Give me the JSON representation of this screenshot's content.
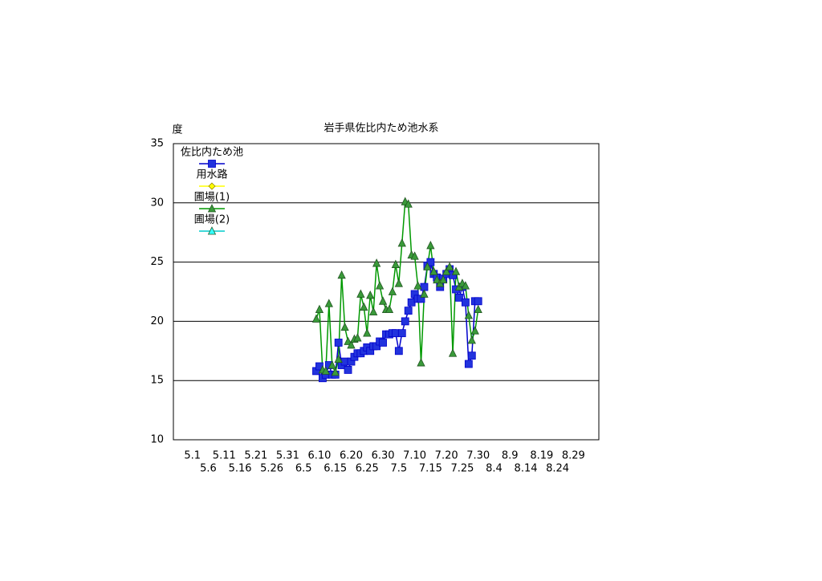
{
  "chart_data": {
    "type": "line",
    "title": "岩手県佐比内ため池水系",
    "ylabel": "度",
    "x": [
      "6.9",
      "6.10",
      "6.11",
      "6.12",
      "6.13",
      "6.14",
      "6.15",
      "6.16",
      "6.17",
      "6.18",
      "6.19",
      "6.20",
      "6.21",
      "6.22",
      "6.23",
      "6.24",
      "6.25",
      "6.26",
      "6.27",
      "6.28",
      "6.29",
      "6.30",
      "7.1",
      "7.2",
      "7.3",
      "7.4",
      "7.5",
      "7.6",
      "7.7",
      "7.8",
      "7.9",
      "7.10",
      "7.11",
      "7.12",
      "7.13",
      "7.14",
      "7.15",
      "7.16",
      "7.17",
      "7.18",
      "7.19",
      "7.20",
      "7.21",
      "7.22",
      "7.23",
      "7.24",
      "7.25",
      "7.26",
      "7.27",
      "7.28",
      "7.29",
      "7.30"
    ],
    "xlim": [
      "4.25",
      "9.6"
    ],
    "xticks": [
      "5.1",
      "5.6",
      "5.11",
      "5.16",
      "5.21",
      "5.26",
      "5.31",
      "6.5",
      "6.10",
      "6.15",
      "6.20",
      "6.25",
      "6.30",
      "7.5",
      "7.10",
      "7.15",
      "7.20",
      "7.25",
      "7.30",
      "8.4",
      "8.9",
      "8.14",
      "8.19",
      "8.24",
      "8.29"
    ],
    "ylim": [
      10,
      35
    ],
    "yticks": [
      10,
      15,
      20,
      25,
      30,
      35
    ],
    "grid": true,
    "legend": "upper left",
    "series": [
      {
        "name": "佐比内ため池",
        "color": "#0000cc",
        "marker": "square",
        "marker_color": "#2233dd",
        "values": [
          15.8,
          16.2,
          15.2,
          15.5,
          16.3,
          15.5,
          15.5,
          18.2,
          16.3,
          16.6,
          15.9,
          16.6,
          17.0,
          17.3,
          17.3,
          17.5,
          17.8,
          17.5,
          17.9,
          17.9,
          18.3,
          18.2,
          18.9,
          18.9,
          19.0,
          19.0,
          17.5,
          19.0,
          20.0,
          20.9,
          21.6,
          22.3,
          21.9,
          21.9,
          22.9,
          24.7,
          25.0,
          24.0,
          23.7,
          22.9,
          23.6,
          24.0,
          24.4,
          23.9,
          22.7,
          22.0,
          22.9,
          21.6,
          16.4,
          17.1,
          21.7,
          21.7
        ]
      },
      {
        "name": "用水路",
        "color": "#ffff00",
        "marker": "diamond",
        "marker_color": "#ffff00",
        "values": [
          null,
          null,
          null,
          null,
          null,
          null,
          null,
          null,
          null,
          null,
          null,
          null,
          null,
          null,
          null,
          null,
          null,
          null,
          null,
          null,
          null,
          null,
          null,
          null,
          null,
          null,
          null,
          null,
          null,
          null,
          null,
          null,
          null,
          null,
          null,
          null,
          null,
          null,
          null,
          null,
          null,
          null,
          null,
          null,
          null,
          null,
          null,
          null,
          null,
          null,
          null,
          null
        ]
      },
      {
        "name": "圃場(1)",
        "color": "#009900",
        "marker": "triangle",
        "marker_color": "#3a9a3a",
        "values": [
          20.2,
          21.0,
          15.9,
          15.8,
          21.5,
          16.3,
          15.7,
          16.8,
          23.9,
          19.5,
          18.3,
          18.0,
          18.5,
          18.6,
          22.3,
          21.2,
          19.0,
          22.2,
          20.8,
          24.9,
          23.0,
          21.7,
          21.0,
          21.0,
          22.5,
          24.8,
          23.2,
          26.6,
          30.1,
          29.9,
          25.6,
          25.5,
          23.0,
          16.5,
          22.3,
          24.6,
          26.4,
          24.2,
          23.5,
          23.2,
          23.5,
          24.2,
          24.6,
          17.3,
          24.2,
          22.9,
          23.2,
          23.0,
          20.5,
          18.4,
          19.2,
          21.0
        ]
      },
      {
        "name": "圃場(2)",
        "color": "#00cccc",
        "marker": "triangle",
        "marker_color": "#33ffff",
        "values": [
          null,
          null,
          null,
          null,
          null,
          null,
          null,
          null,
          null,
          null,
          null,
          null,
          null,
          null,
          null,
          null,
          null,
          null,
          null,
          null,
          null,
          null,
          null,
          null,
          null,
          null,
          null,
          null,
          null,
          null,
          null,
          null,
          null,
          null,
          null,
          null,
          null,
          null,
          null,
          null,
          null,
          null,
          null,
          null,
          null,
          null,
          null,
          null,
          null,
          null,
          null,
          null
        ]
      }
    ]
  }
}
